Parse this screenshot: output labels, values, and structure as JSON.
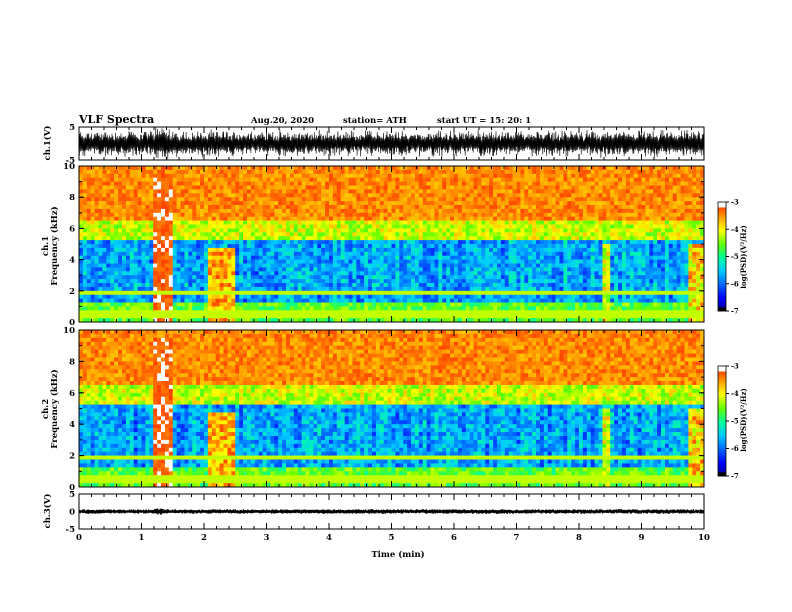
{
  "header": {
    "title": "VLF Spectra",
    "date": "Aug.20, 2020",
    "station": "station= ATH",
    "start": "start  UT  =   15: 20: 1"
  },
  "chart_data": [
    {
      "type": "line",
      "panel": "ch1-waveform",
      "ylabel": "ch.1(V)",
      "ylim": [
        -5,
        5
      ],
      "yticks": [
        "5",
        "-5"
      ],
      "xlim": [
        0,
        10
      ]
    },
    {
      "type": "heatmap",
      "panel": "ch1-spectrogram",
      "ylabel_top": "ch.1",
      "ylabel": "Frequency (kHz)",
      "ylim": [
        0,
        10
      ],
      "yticks": [
        "0",
        "2",
        "4",
        "6",
        "8",
        "10"
      ],
      "xlim": [
        0,
        10
      ],
      "colorbar": {
        "label": "log(PSD)(V²/Hz)",
        "range": [
          -7,
          -3
        ],
        "ticks": [
          "-3",
          "-4",
          "-5",
          "-6",
          "-7"
        ]
      }
    },
    {
      "type": "heatmap",
      "panel": "ch2-spectrogram",
      "ylabel_top": "ch.2",
      "ylabel": "Frequency (kHz)",
      "ylim": [
        0,
        10
      ],
      "yticks": [
        "0",
        "2",
        "4",
        "6",
        "8",
        "10"
      ],
      "xlim": [
        0,
        10
      ],
      "colorbar": {
        "label": "log(PSD)(V²/Hz)",
        "range": [
          -7,
          -3
        ],
        "ticks": [
          "-3",
          "-4",
          "-5",
          "-6",
          "-7"
        ]
      }
    },
    {
      "type": "line",
      "panel": "ch3-waveform",
      "ylabel": "ch.3(V)",
      "ylim": [
        -5,
        5
      ],
      "yticks": [
        "5",
        "0",
        "-5"
      ],
      "xlim": [
        0,
        10
      ],
      "xlabel": "Time  (min)",
      "xticks": [
        "0",
        "1",
        "2",
        "3",
        "4",
        "5",
        "6",
        "7",
        "8",
        "9",
        "10"
      ]
    }
  ],
  "colors": {
    "scale": [
      "#000000",
      "#0000cc",
      "#0044ff",
      "#00bbff",
      "#00ff88",
      "#88ff00",
      "#ffff00",
      "#ff8800",
      "#ff0000",
      "#ffffff"
    ]
  }
}
